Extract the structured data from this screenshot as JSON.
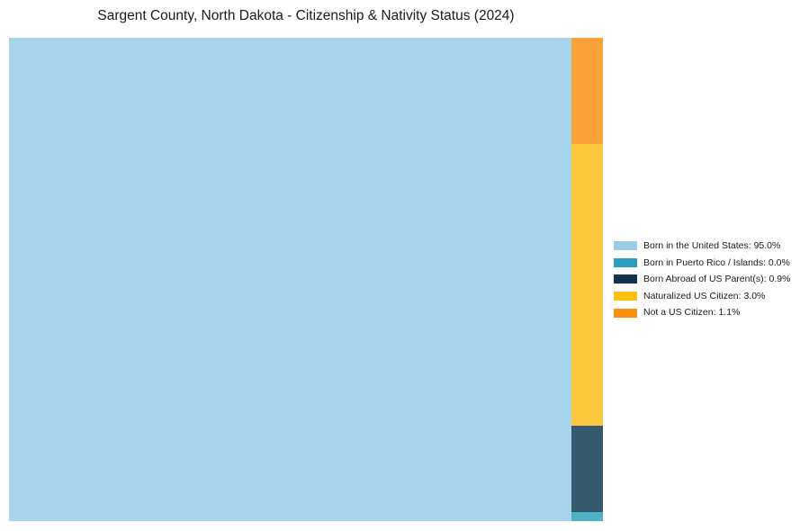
{
  "title": "Sargent County, North Dakota - Citizenship & Nativity Status (2024)",
  "chart_data": {
    "type": "treemap",
    "title": "Sargent County, North Dakota - Citizenship & Nativity Status (2024)",
    "unit": "percent of county population",
    "grid": false,
    "axes_visible": false,
    "legend_position": "center-right, outside plot",
    "categories": [
      "Born in the United States",
      "Born in Puerto Rico / Islands",
      "Born Abroad of US Parent(s)",
      "Naturalized US Citizen",
      "Not a US Citizen"
    ],
    "values": [
      95.0,
      0.0,
      0.9,
      3.0,
      1.1
    ],
    "series": [
      {
        "label": "Born in the United States",
        "pct": 95.0,
        "legend_text": "Born in the United States: 95.0%",
        "block_color": "#a5d4eb",
        "legend_color": "#9bcde4"
      },
      {
        "label": "Born in Puerto Rico / Islands",
        "pct": 0.0,
        "legend_text": "Born in Puerto Rico / Islands: 0.0%",
        "block_color": "#4db3c4",
        "legend_color": "#2b9fbe"
      },
      {
        "label": "Born Abroad of US Parent(s)",
        "pct": 0.9,
        "legend_text": "Born Abroad of US Parent(s): 0.9%",
        "block_color": "#36596f",
        "legend_color": "#123349"
      },
      {
        "label": "Naturalized US Citizen",
        "pct": 3.0,
        "legend_text": "Naturalized US Citizen: 3.0%",
        "block_color": "#fdc63c",
        "legend_color": "#fcc10e"
      },
      {
        "label": "Not a US Citizen",
        "pct": 1.1,
        "legend_text": "Not a US Citizen: 1.1%",
        "block_color": "#f9a23a",
        "legend_color": "#f9910d"
      }
    ]
  }
}
